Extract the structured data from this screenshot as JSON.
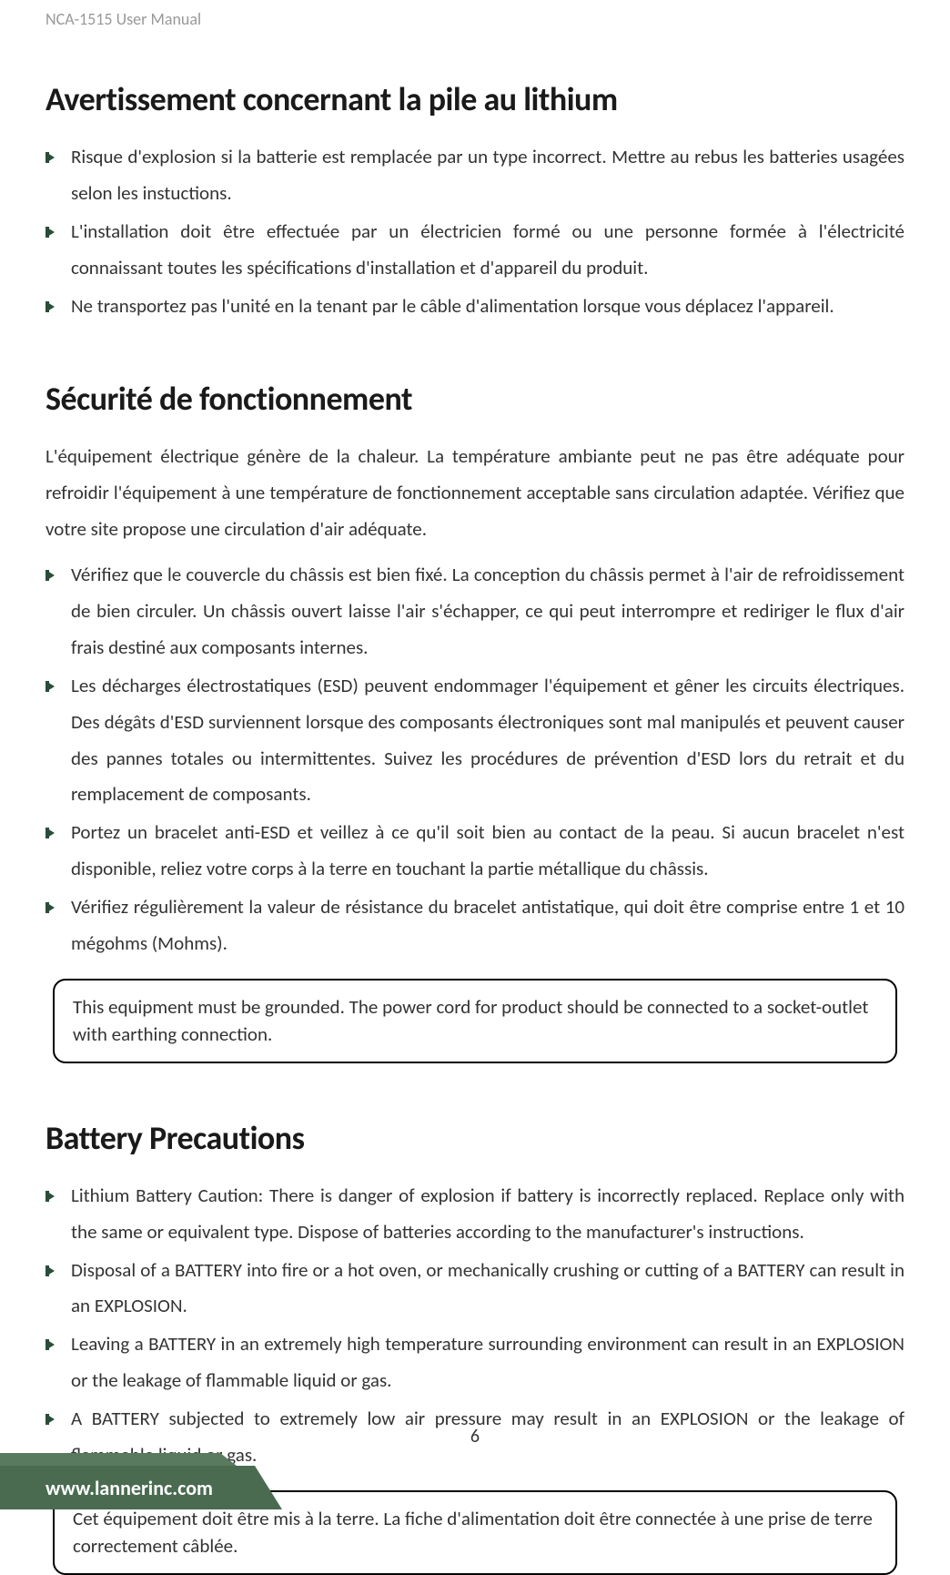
{
  "header": {
    "doc_title": "NCA-1515 User Manual"
  },
  "page_number": "6",
  "footer": {
    "url": "www.lannerinc.com"
  },
  "sections": [
    {
      "heading": "Avertissement concernant la pile au lithium",
      "intro": "",
      "bullets": [
        "Risque d'explosion si la batterie est remplacée par un type incorrect. Mettre au rebus les batteries usagées selon les instuctions.",
        "L'installation doit être effectuée par un électricien formé ou une personne formée à l'électricité connaissant toutes les spécifications d'installation et d'appareil du produit.",
        "Ne transportez pas l'unité en la tenant par le câble d'alimentation lorsque vous déplacez l'appareil."
      ],
      "notice": ""
    },
    {
      "heading": "Sécurité de fonctionnement",
      "intro": "L'équipement électrique génère de la chaleur. La température ambiante peut ne pas être adéquate pour refroidir l'équipement à une température de fonctionnement acceptable sans circulation adaptée. Vérifiez que votre site propose une circulation d'air adéquate.",
      "bullets": [
        "Vérifiez que le couvercle du châssis est bien fixé. La conception du châssis permet à l'air de refroidissement de bien circuler. Un châssis ouvert laisse l'air s'échapper, ce qui peut interrompre et rediriger le flux d'air frais destiné aux composants internes.",
        "Les décharges électrostatiques (ESD) peuvent endommager l'équipement et gêner les circuits électriques. Des dégâts d'ESD surviennent lorsque des composants électroniques sont mal manipulés et peuvent causer des pannes totales ou intermittentes. Suivez les procédures de prévention d'ESD lors du retrait et du remplacement de composants.",
        "Portez un bracelet anti-ESD et veillez à ce qu'il soit bien au contact de la peau. Si aucun bracelet n'est disponible, reliez votre corps à la terre en touchant la partie métallique du châssis.",
        "Vérifiez régulièrement la valeur de résistance du bracelet antistatique, qui doit être comprise entre 1 et 10 mégohms (Mohms)."
      ],
      "notice": "This equipment must be grounded. The power cord for product should be connected to a socket-outlet with earthing connection."
    },
    {
      "heading": "Battery Precautions",
      "intro": "",
      "bullets": [
        "Lithium Battery Caution: There is danger of explosion if battery is incorrectly replaced. Replace only with the same or equivalent type. Dispose of batteries according to the manufacturer's instructions.",
        "Disposal of a BATTERY into fire or a hot oven, or mechanically crushing or cutting of a BATTERY can result in an EXPLOSION.",
        "Leaving a BATTERY in an extremely high temperature surrounding environment can result in an EXPLOSION or the leakage of flammable liquid or gas.",
        "A BATTERY subjected to extremely low air pressure may result in an EXPLOSION or the leakage of flammable liquid or gas."
      ],
      "notice": "Cet équipement doit être mis à la terre. La fiche d'alimentation doit être connectée à une prise de terre correctement câblée."
    }
  ],
  "colors": {
    "text": "#333333",
    "header_text": "#999999",
    "heading": "#1a1a1a",
    "bullet": "#2a4d3a",
    "footer_bg": "#4a6b50",
    "footer_accent": "#5a7a5f",
    "box_border": "#000000"
  }
}
